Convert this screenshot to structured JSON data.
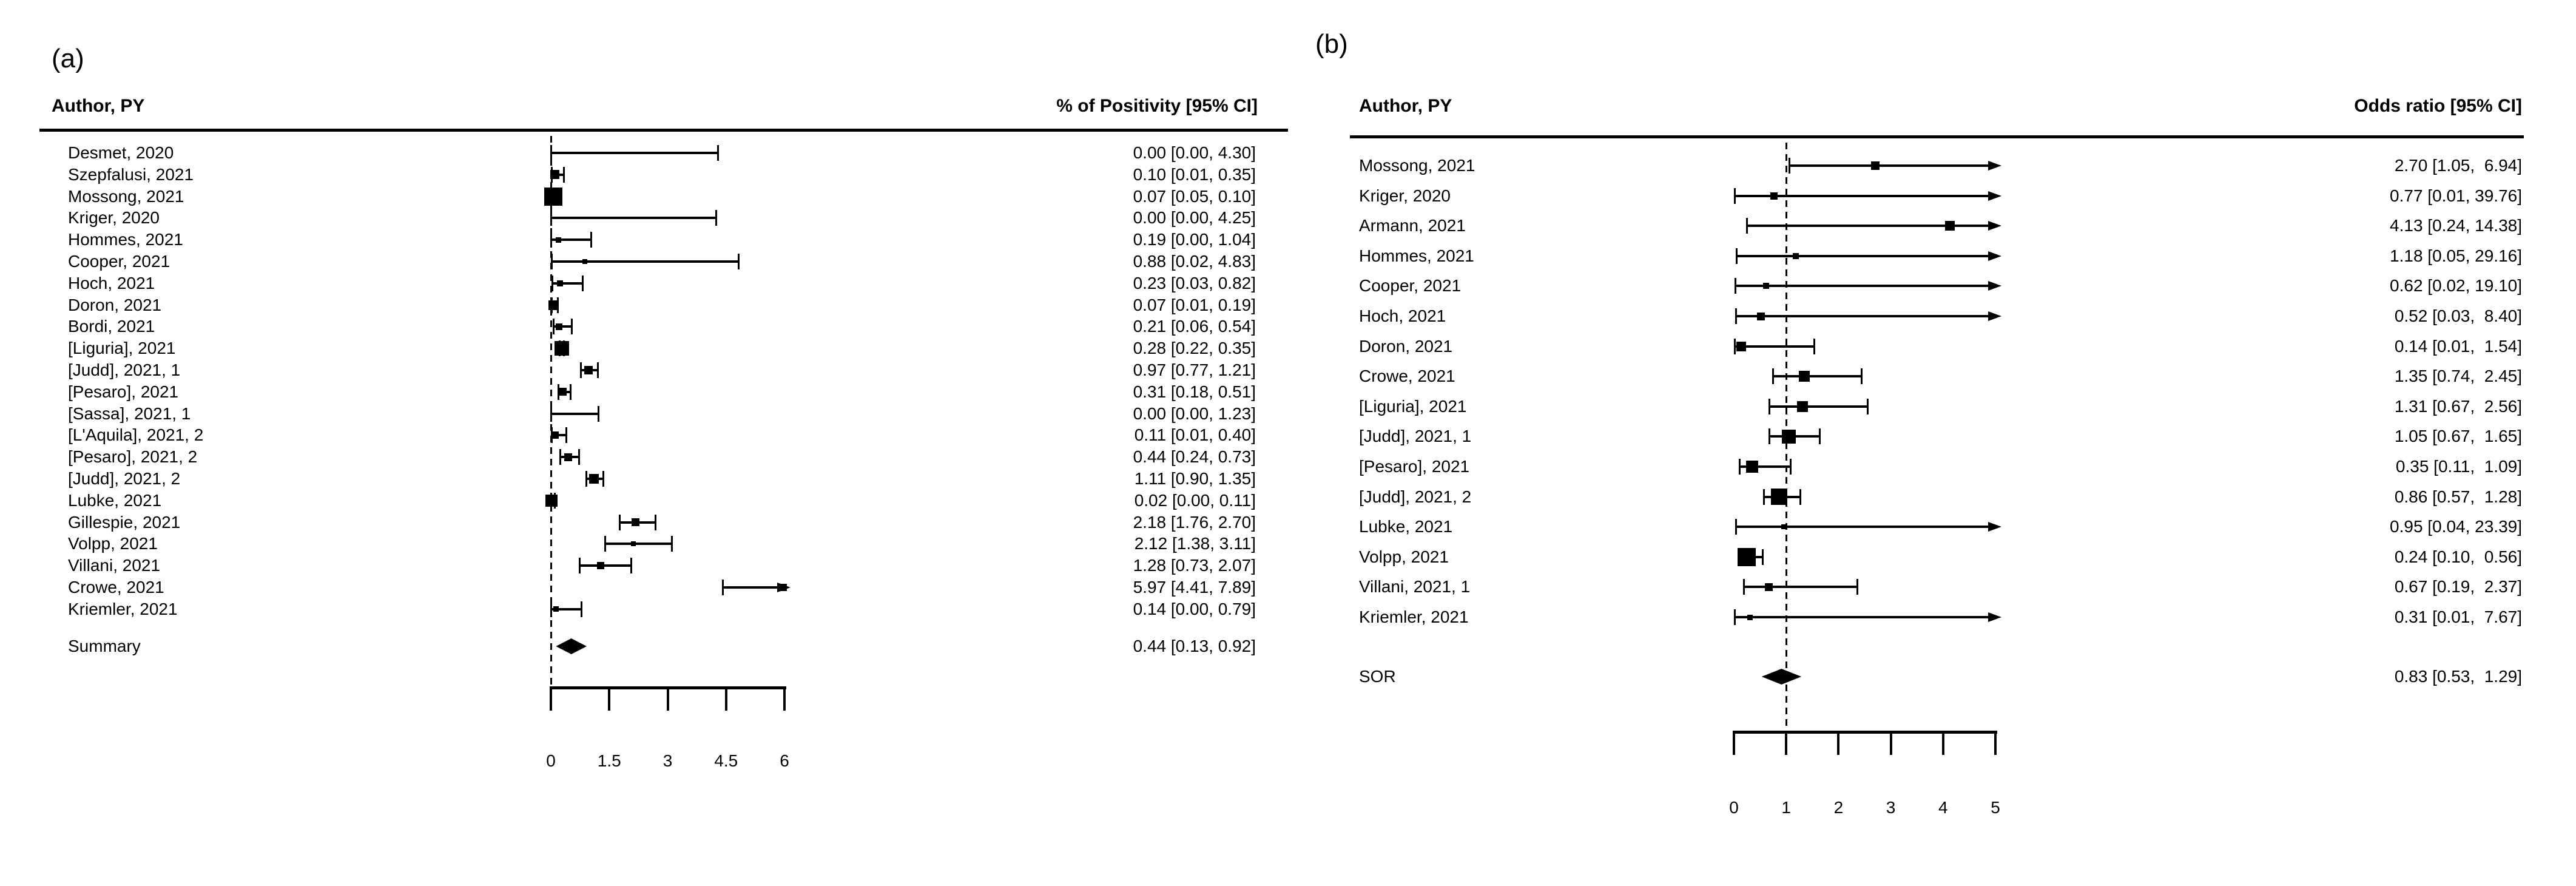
{
  "figure": {
    "background": "#ffffff",
    "text_color": "#000000",
    "marker_color": "#000000"
  },
  "chart_data": [
    {
      "type": "forest",
      "panel_label": "(a)",
      "header": {
        "author": "Author, PY",
        "value": "% of Positivity [95% CI]"
      },
      "axis": {
        "min": 0,
        "max": 6,
        "ticks": [
          0,
          1.5,
          3,
          4.5,
          6
        ],
        "tick_labels": [
          "0",
          "1.5",
          "3",
          "4.5",
          "6"
        ],
        "ref_line": 0
      },
      "studies": [
        {
          "label": "Desmet, 2020",
          "est": 0.0,
          "lo": 0.0,
          "hi": 4.3,
          "display": "0.00 [0.00, 4.30]",
          "marker_px": 0
        },
        {
          "label": "Szepfalusi, 2021",
          "est": 0.1,
          "lo": 0.01,
          "hi": 0.35,
          "display": "0.10 [0.01, 0.35]",
          "marker_px": 15
        },
        {
          "label": "Mossong, 2021",
          "est": 0.07,
          "lo": 0.05,
          "hi": 0.1,
          "display": "0.07 [0.05, 0.10]",
          "marker_px": 30
        },
        {
          "label": "Kriger, 2020",
          "est": 0.0,
          "lo": 0.0,
          "hi": 4.25,
          "display": "0.00 [0.00, 4.25]",
          "marker_px": 0
        },
        {
          "label": "Hommes, 2021",
          "est": 0.19,
          "lo": 0.0,
          "hi": 1.04,
          "display": "0.19 [0.00, 1.04]",
          "marker_px": 9
        },
        {
          "label": "Cooper, 2021",
          "est": 0.88,
          "lo": 0.02,
          "hi": 4.83,
          "display": "0.88 [0.02, 4.83]",
          "marker_px": 8
        },
        {
          "label": "Hoch, 2021",
          "est": 0.23,
          "lo": 0.03,
          "hi": 0.82,
          "display": "0.23 [0.03, 0.82]",
          "marker_px": 10
        },
        {
          "label": "Doron, 2021",
          "est": 0.07,
          "lo": 0.01,
          "hi": 0.19,
          "display": "0.07 [0.01, 0.19]",
          "marker_px": 16
        },
        {
          "label": "Bordi, 2021",
          "est": 0.21,
          "lo": 0.06,
          "hi": 0.54,
          "display": "0.21 [0.06, 0.54]",
          "marker_px": 11
        },
        {
          "label": "[Liguria], 2021",
          "est": 0.28,
          "lo": 0.22,
          "hi": 0.35,
          "display": "0.28 [0.22, 0.35]",
          "marker_px": 24
        },
        {
          "label": "[Judd], 2021, 1",
          "est": 0.97,
          "lo": 0.77,
          "hi": 1.21,
          "display": "0.97 [0.77, 1.21]",
          "marker_px": 14
        },
        {
          "label": "[Pesaro], 2021",
          "est": 0.31,
          "lo": 0.18,
          "hi": 0.51,
          "display": "0.31 [0.18, 0.51]",
          "marker_px": 13
        },
        {
          "label": "[Sassa], 2021, 1",
          "est": 0.0,
          "lo": 0.0,
          "hi": 1.23,
          "display": "0.00 [0.00, 1.23]",
          "marker_px": 0
        },
        {
          "label": "[L'Aquila], 2021, 2",
          "est": 0.11,
          "lo": 0.01,
          "hi": 0.4,
          "display": "0.11 [0.01, 0.40]",
          "marker_px": 12
        },
        {
          "label": "[Pesaro], 2021, 2",
          "est": 0.44,
          "lo": 0.24,
          "hi": 0.73,
          "display": "0.44 [0.24, 0.73]",
          "marker_px": 13
        },
        {
          "label": "[Judd], 2021, 2",
          "est": 1.11,
          "lo": 0.9,
          "hi": 1.35,
          "display": "1.11 [0.90, 1.35]",
          "marker_px": 16
        },
        {
          "label": "Lubke, 2021",
          "est": 0.02,
          "lo": 0.0,
          "hi": 0.11,
          "display": "0.02 [0.00, 0.11]",
          "marker_px": 20
        },
        {
          "label": "Gillespie, 2021",
          "est": 2.18,
          "lo": 1.76,
          "hi": 2.7,
          "display": "2.18 [1.76, 2.70]",
          "marker_px": 13
        },
        {
          "label": "Volpp, 2021",
          "est": 2.12,
          "lo": 1.38,
          "hi": 3.11,
          "display": "2.12 [1.38, 3.11]",
          "marker_px": 8
        },
        {
          "label": "Villani, 2021",
          "est": 1.28,
          "lo": 0.73,
          "hi": 2.07,
          "display": "1.28 [0.73, 2.07]",
          "marker_px": 12
        },
        {
          "label": "Crowe, 2021",
          "est": 5.97,
          "lo": 4.41,
          "hi": 7.89,
          "display": "5.97 [4.41, 7.89]",
          "marker_px": 12
        },
        {
          "label": "Kriemler, 2021",
          "est": 0.14,
          "lo": 0.0,
          "hi": 0.79,
          "display": "0.14 [0.00, 0.79]",
          "marker_px": 9
        }
      ],
      "summary": {
        "label": "Summary",
        "est": 0.44,
        "lo": 0.13,
        "hi": 0.92,
        "display": "0.44 [0.13, 0.92]"
      }
    },
    {
      "type": "forest",
      "panel_label": "(b)",
      "header": {
        "author": "Author, PY",
        "value": "Odds ratio [95% CI]"
      },
      "axis": {
        "min": 0,
        "max": 5,
        "ticks": [
          0,
          1,
          2,
          3,
          4,
          5
        ],
        "tick_labels": [
          "0",
          "1",
          "2",
          "3",
          "4",
          "5"
        ],
        "ref_line": 1
      },
      "studies": [
        {
          "label": "Mossong, 2021",
          "est": 2.7,
          "lo": 1.05,
          "hi": 6.94,
          "display": "2.70 [1.05,  6.94]",
          "marker_px": 14
        },
        {
          "label": "Kriger, 2020",
          "est": 0.77,
          "lo": 0.01,
          "hi": 39.76,
          "display": "0.77 [0.01, 39.76]",
          "marker_px": 12
        },
        {
          "label": "Armann, 2021",
          "est": 4.13,
          "lo": 0.24,
          "hi": 14.38,
          "display": "4.13 [0.24, 14.38]",
          "marker_px": 16
        },
        {
          "label": "Hommes, 2021",
          "est": 1.18,
          "lo": 0.05,
          "hi": 29.16,
          "display": "1.18 [0.05, 29.16]",
          "marker_px": 10
        },
        {
          "label": "Cooper, 2021",
          "est": 0.62,
          "lo": 0.02,
          "hi": 19.1,
          "display": "0.62 [0.02, 19.10]",
          "marker_px": 10
        },
        {
          "label": "Hoch, 2021",
          "est": 0.52,
          "lo": 0.03,
          "hi": 8.4,
          "display": "0.52 [0.03,  8.40]",
          "marker_px": 13
        },
        {
          "label": "Doron, 2021",
          "est": 0.14,
          "lo": 0.01,
          "hi": 1.54,
          "display": "0.14 [0.01,  1.54]",
          "marker_px": 16
        },
        {
          "label": "Crowe, 2021",
          "est": 1.35,
          "lo": 0.74,
          "hi": 2.45,
          "display": "1.35 [0.74,  2.45]",
          "marker_px": 18
        },
        {
          "label": "[Liguria], 2021",
          "est": 1.31,
          "lo": 0.67,
          "hi": 2.56,
          "display": "1.31 [0.67,  2.56]",
          "marker_px": 18
        },
        {
          "label": "[Judd], 2021, 1",
          "est": 1.05,
          "lo": 0.67,
          "hi": 1.65,
          "display": "1.05 [0.67,  1.65]",
          "marker_px": 23
        },
        {
          "label": "[Pesaro], 2021",
          "est": 0.35,
          "lo": 0.11,
          "hi": 1.09,
          "display": "0.35 [0.11,  1.09]",
          "marker_px": 20
        },
        {
          "label": "[Judd], 2021, 2",
          "est": 0.86,
          "lo": 0.57,
          "hi": 1.28,
          "display": "0.86 [0.57,  1.28]",
          "marker_px": 27
        },
        {
          "label": "Lubke, 2021",
          "est": 0.95,
          "lo": 0.04,
          "hi": 23.39,
          "display": "0.95 [0.04, 23.39]",
          "marker_px": 8
        },
        {
          "label": "Volpp, 2021",
          "est": 0.24,
          "lo": 0.1,
          "hi": 0.56,
          "display": "0.24 [0.10,  0.56]",
          "marker_px": 30
        },
        {
          "label": "Villani, 2021, 1",
          "est": 0.67,
          "lo": 0.19,
          "hi": 2.37,
          "display": "0.67 [0.19,  2.37]",
          "marker_px": 13
        },
        {
          "label": "Kriemler, 2021",
          "est": 0.31,
          "lo": 0.01,
          "hi": 7.67,
          "display": "0.31 [0.01,  7.67]",
          "marker_px": 9
        }
      ],
      "summary": {
        "label": "SOR",
        "est": 0.83,
        "lo": 0.53,
        "hi": 1.29,
        "display": "0.83 [0.53,  1.29]"
      }
    }
  ]
}
